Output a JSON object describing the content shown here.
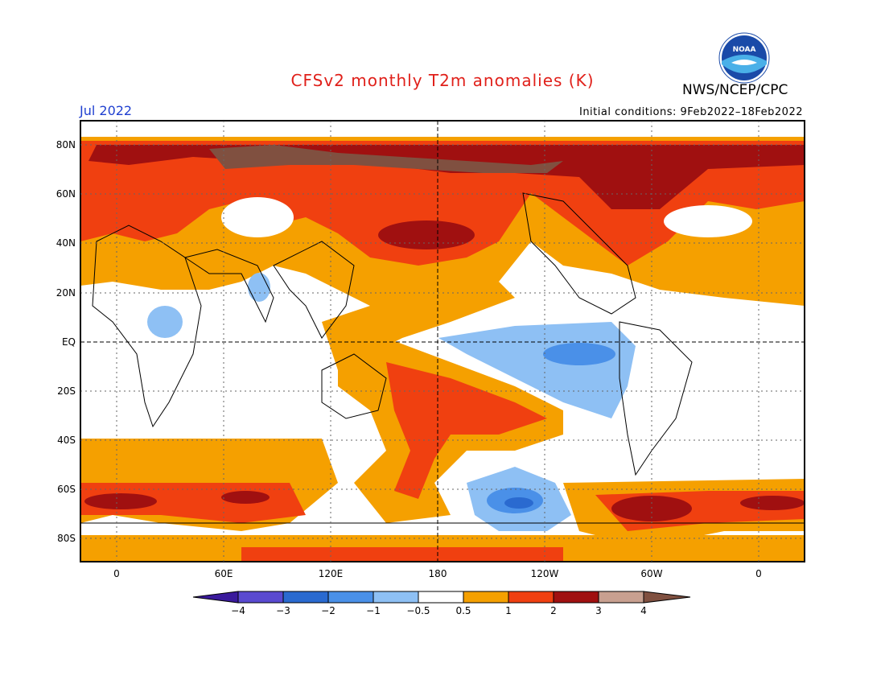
{
  "header": {
    "title": "CFSv2 monthly T2m anomalies (K)",
    "agency": "NWS/NCEP/CPC",
    "month": "Jul 2022",
    "initial_conditions": "Initial conditions: 9Feb2022–18Feb2022",
    "logo_text": "NOAA"
  },
  "map": {
    "lat_labels": [
      "80N",
      "60N",
      "40N",
      "20N",
      "EQ",
      "20S",
      "40S",
      "60S",
      "80S"
    ],
    "lon_labels": [
      "0",
      "60E",
      "120E",
      "180",
      "120W",
      "60W",
      "0"
    ]
  },
  "colorbar": {
    "labels": [
      "−4",
      "−3",
      "−2",
      "−1",
      "−0.5",
      "0.5",
      "1",
      "2",
      "3",
      "4"
    ],
    "colors": [
      "#3a1a9c",
      "#5a4ad0",
      "#2a6ad0",
      "#4a90e8",
      "#8ec0f4",
      "#ffffff",
      "#f5a000",
      "#f04010",
      "#a01010",
      "#c8a090",
      "#805040"
    ]
  }
}
